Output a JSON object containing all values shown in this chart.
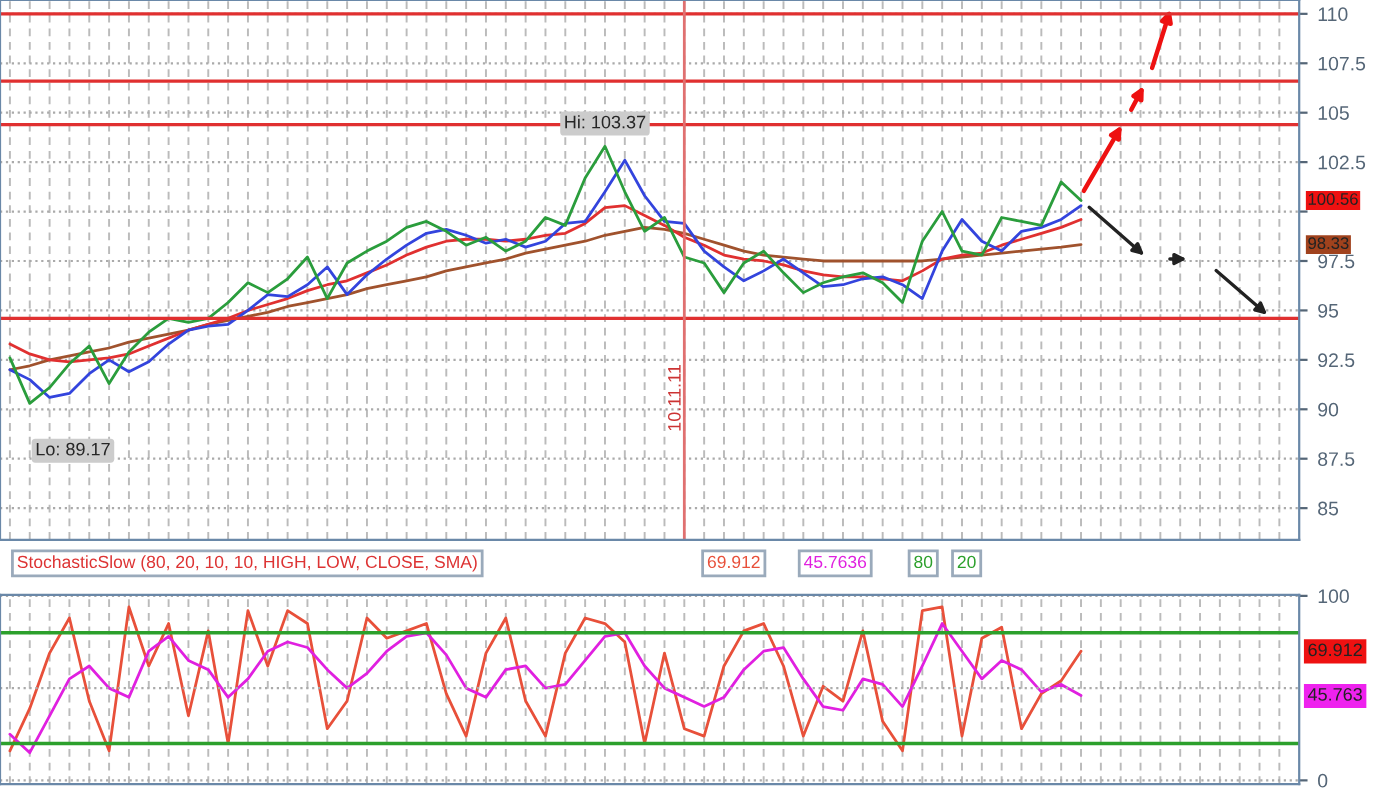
{
  "chart_data": [
    {
      "type": "line",
      "categories": [
        null,
        null,
        null,
        null,
        null,
        null,
        null,
        null,
        null,
        null,
        null,
        null,
        null,
        null,
        null,
        null,
        null,
        null,
        null,
        null,
        null,
        null,
        null,
        null,
        null,
        null,
        null,
        null,
        null,
        null,
        null,
        null,
        null,
        null,
        null,
        null,
        null,
        null,
        null,
        null,
        null,
        null,
        null,
        null,
        null,
        null,
        null,
        null,
        null,
        null,
        null,
        null,
        null,
        null,
        null,
        null,
        null,
        null,
        null,
        null,
        null,
        null,
        null,
        null,
        null
      ],
      "series": [
        {
          "color": "#a0522d",
          "values": [
            92.0,
            92.2,
            92.5,
            92.7,
            92.9,
            93.1,
            93.4,
            93.6,
            93.8,
            94.0,
            94.3,
            94.5,
            94.7,
            94.9,
            95.2,
            95.4,
            95.6,
            95.8,
            96.1,
            96.3,
            96.5,
            96.7,
            97.0,
            97.2,
            97.4,
            97.6,
            97.9,
            98.1,
            98.3,
            98.5,
            98.8,
            99.0,
            99.2,
            99.1,
            98.9,
            98.6,
            98.3,
            98.0,
            97.8,
            97.7,
            97.6,
            97.5,
            97.5,
            97.5,
            97.5,
            97.5,
            97.5,
            97.6,
            97.7,
            97.8,
            97.9,
            98.0,
            98.1,
            98.2,
            98.33,
            null,
            null,
            null,
            null,
            null,
            null,
            null,
            null,
            null,
            null
          ]
        },
        {
          "color": "#e03030",
          "values": [
            93.3,
            92.8,
            92.5,
            92.4,
            92.5,
            92.6,
            92.8,
            93.2,
            93.6,
            94.0,
            94.3,
            94.6,
            95.0,
            95.3,
            95.6,
            96.0,
            96.3,
            96.5,
            96.9,
            97.3,
            97.8,
            98.2,
            98.5,
            98.6,
            98.6,
            98.5,
            98.6,
            98.8,
            98.9,
            99.4,
            100.2,
            100.3,
            99.8,
            99.3,
            98.7,
            98.3,
            97.8,
            97.6,
            97.5,
            97.3,
            97.0,
            96.8,
            96.7,
            96.7,
            96.6,
            96.5,
            97.0,
            97.6,
            97.8,
            97.9,
            98.3,
            98.6,
            98.9,
            99.2,
            99.6,
            null,
            null,
            null,
            null,
            null,
            null,
            null,
            null,
            null,
            null
          ]
        },
        {
          "color": "#3344dd",
          "values": [
            92.0,
            91.5,
            90.6,
            90.8,
            91.8,
            92.5,
            91.9,
            92.4,
            93.3,
            94.0,
            94.2,
            94.3,
            95.0,
            95.8,
            95.7,
            96.3,
            97.2,
            95.8,
            96.8,
            97.6,
            98.3,
            98.9,
            99.1,
            98.8,
            98.4,
            98.6,
            98.2,
            98.5,
            99.4,
            99.5,
            101.0,
            102.6,
            100.8,
            99.5,
            99.4,
            98.0,
            97.2,
            96.5,
            97.0,
            97.6,
            96.9,
            96.2,
            96.3,
            96.6,
            96.7,
            96.3,
            95.6,
            98.0,
            99.6,
            98.5,
            98.0,
            99.0,
            99.2,
            99.6,
            100.3,
            null,
            null,
            null,
            null,
            null,
            null,
            null,
            null,
            null,
            null
          ]
        },
        {
          "color": "#2a9d3c",
          "values": [
            92.6,
            90.3,
            91.1,
            92.3,
            93.2,
            91.3,
            92.9,
            93.9,
            94.6,
            94.4,
            94.6,
            95.4,
            96.4,
            95.9,
            96.6,
            97.7,
            95.6,
            97.4,
            98.0,
            98.5,
            99.2,
            99.5,
            99.0,
            98.3,
            98.7,
            98.0,
            98.5,
            99.7,
            99.3,
            101.7,
            103.3,
            101.0,
            99.0,
            99.7,
            97.7,
            97.4,
            95.9,
            97.4,
            98.0,
            96.9,
            95.9,
            96.4,
            96.7,
            96.9,
            96.4,
            95.4,
            98.5,
            100.0,
            98.0,
            97.8,
            99.7,
            99.5,
            99.3,
            101.5,
            100.56,
            null,
            null,
            null,
            null,
            null,
            null,
            null,
            null,
            null,
            null
          ]
        }
      ],
      "ylim": [
        83.4,
        110.7
      ],
      "yticks": [
        85,
        87.5,
        90,
        92.5,
        95,
        97.5,
        {
          "value": 100,
          "label": null
        },
        102.5,
        105,
        107.5,
        110
      ],
      "tick_labels": "y",
      "grid": true,
      "legend": false,
      "ref_lines": [
        {
          "axis": "y",
          "value": 110,
          "color": "#e03030"
        },
        {
          "axis": "y",
          "value": 106.6,
          "color": "#e03030"
        },
        {
          "axis": "y",
          "value": 104.4,
          "color": "#e03030"
        },
        {
          "axis": "y",
          "value": 94.6,
          "color": "#e03030"
        }
      ],
      "annotations": [
        {
          "text": "Hi: 103.37",
          "y": 103.37
        },
        "Lo: 89.17",
        "10.11.11",
        "100.56",
        "98.33"
      ]
    },
    {
      "type": "line",
      "title": "StochasticSlow (80, 20, 10, 10, HIGH, LOW, CLOSE, SMA)",
      "categories": [
        null,
        null,
        null,
        null,
        null,
        null,
        null,
        null,
        null,
        null,
        null,
        null,
        null,
        null,
        null,
        null,
        null,
        null,
        null,
        null,
        null,
        null,
        null,
        null,
        null,
        null,
        null,
        null,
        null,
        null,
        null,
        null,
        null,
        null,
        null,
        null,
        null,
        null,
        null,
        null,
        null,
        null,
        null,
        null,
        null,
        null,
        null,
        null,
        null,
        null,
        null,
        null,
        null,
        null,
        null,
        null,
        null,
        null,
        null,
        null,
        null,
        null,
        null,
        null,
        null
      ],
      "series": [
        {
          "color": "#e8503a",
          "values": [
            16,
            39,
            69,
            88,
            43,
            16,
            94,
            62,
            85,
            35,
            81,
            20,
            92,
            62,
            92,
            85,
            28,
            43,
            88,
            77,
            81,
            85,
            47,
            24,
            69,
            88,
            43,
            24,
            69,
            88,
            85,
            75,
            20,
            69,
            28,
            24,
            62,
            81,
            85,
            62,
            24,
            51,
            43,
            81,
            32,
            16,
            92,
            94,
            24,
            77,
            83,
            28,
            47,
            54,
            70,
            null,
            null,
            null,
            null,
            null,
            null,
            null,
            null,
            null,
            null
          ]
        },
        {
          "color": "#e020e0",
          "values": [
            25,
            15,
            35,
            55,
            62,
            50,
            45,
            70,
            78,
            65,
            60,
            45,
            55,
            70,
            75,
            72,
            60,
            50,
            58,
            70,
            78,
            80,
            68,
            50,
            45,
            60,
            62,
            50,
            52,
            65,
            78,
            80,
            62,
            50,
            45,
            40,
            45,
            60,
            70,
            72,
            55,
            40,
            38,
            55,
            52,
            40,
            62,
            85,
            70,
            55,
            65,
            60,
            48,
            52,
            46,
            null,
            null,
            null,
            null,
            null,
            null,
            null,
            null,
            null,
            null
          ]
        }
      ],
      "ylim": [
        -2,
        100.5
      ],
      "yticks": [
        0,
        100
      ],
      "tick_labels": "y",
      "grid": true,
      "legend": false,
      "ref_lines": [
        {
          "axis": "y",
          "value": 50,
          "color": "#aaaaaa",
          "line_style": "dotted"
        },
        {
          "axis": "y",
          "value": 80,
          "color": "#2ca02c"
        },
        {
          "axis": "y",
          "value": 20,
          "color": "#2ca02c"
        }
      ],
      "annotations": [
        "69.912",
        "45.7636",
        "80",
        "20",
        {
          "text": "69.912",
          "y": 69.912
        },
        {
          "text": "45.763",
          "y": 45.763
        }
      ]
    }
  ]
}
